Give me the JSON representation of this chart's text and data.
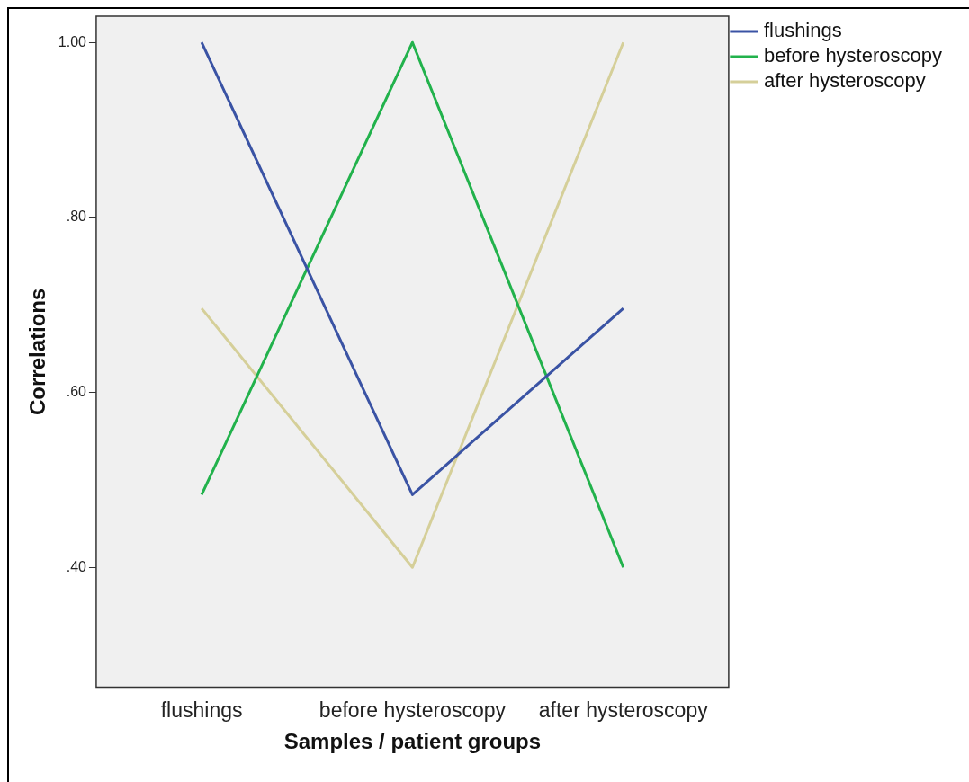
{
  "chart_data": {
    "type": "line",
    "xlabel": "Samples / patient groups",
    "ylabel": "Correlations",
    "categories": [
      "flushings",
      "before hysteroscopy",
      "after hysteroscopy"
    ],
    "series": [
      {
        "name": "flushings",
        "color": "#3a53a4",
        "values": [
          1.0,
          0.483,
          0.696
        ]
      },
      {
        "name": "before hysteroscopy",
        "color": "#22b24c",
        "values": [
          0.483,
          1.0,
          0.4
        ]
      },
      {
        "name": "after hysteroscopy",
        "color": "#d5cf99",
        "values": [
          0.696,
          0.4,
          1.0
        ]
      }
    ],
    "ylim": [
      0.263,
      1.03
    ],
    "yticks": [
      {
        "value": 0.4,
        "label": ".40"
      },
      {
        "value": 0.6,
        "label": ".60"
      },
      {
        "value": 0.8,
        "label": ".80"
      },
      {
        "value": 1.0,
        "label": "1.00"
      }
    ],
    "grid": false,
    "legend": "top right",
    "marker": "none",
    "line_style": "solid"
  }
}
